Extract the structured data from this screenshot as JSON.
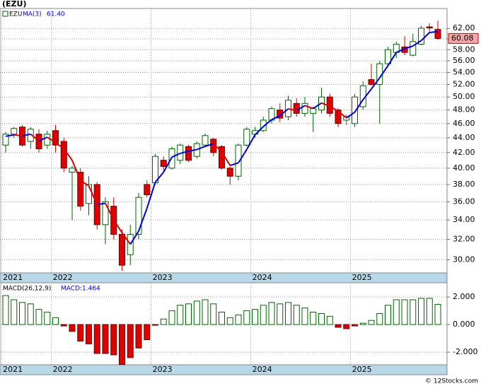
{
  "chart_data": [
    {
      "type": "candlestick",
      "title": "(EZU)",
      "name": "EZU",
      "categories": [
        null,
        null,
        null,
        null,
        null,
        null,
        null,
        null,
        null,
        null,
        null,
        null,
        null,
        null,
        null,
        null,
        null,
        null,
        null,
        null,
        null,
        null,
        null,
        null,
        null,
        null,
        null,
        null,
        null,
        null,
        null,
        null,
        null,
        null,
        null,
        null,
        null,
        null,
        null,
        null,
        null,
        null,
        null,
        null,
        null,
        null,
        null,
        null,
        null,
        null,
        null,
        null,
        null
      ],
      "open": [
        43.0,
        44.5,
        45.5,
        43.5,
        44.5,
        43.0,
        45.0,
        43.5,
        39.5,
        39.5,
        35.8,
        38.0,
        33.5,
        35.5,
        32.5,
        30.5,
        32.5,
        38.0,
        38.2,
        41.0,
        40.0,
        41.0,
        42.8,
        41.5,
        43.0,
        43.8,
        42.8,
        40.0,
        39.0,
        43.0,
        44.5,
        45.0,
        46.5,
        48.0,
        47.0,
        49.0,
        47.5,
        47.5,
        48.0,
        50.0,
        48.0,
        46.5,
        46.0,
        48.5,
        52.8,
        52.0,
        55.5,
        57.5,
        58.5,
        57.0,
        59.0,
        62.3,
        61.8
      ],
      "high": [
        44.8,
        45.5,
        45.8,
        45.5,
        45.2,
        45.0,
        45.8,
        44.0,
        40.3,
        40.0,
        39.0,
        38.3,
        36.5,
        36.5,
        33.0,
        33.5,
        37.0,
        38.5,
        41.8,
        41.5,
        42.8,
        43.2,
        43.0,
        43.5,
        44.6,
        44.0,
        43.0,
        40.2,
        43.2,
        45.5,
        45.5,
        47.0,
        48.5,
        49.0,
        50.2,
        49.8,
        50.0,
        48.5,
        51.5,
        50.5,
        48.3,
        47.3,
        50.5,
        52.5,
        55.5,
        56.0,
        58.5,
        59.5,
        60.5,
        61.0,
        62.5,
        63.0,
        63.5
      ],
      "low": [
        42.0,
        44.0,
        42.8,
        42.5,
        42.0,
        42.5,
        42.0,
        39.5,
        34.0,
        35.0,
        34.5,
        33.0,
        31.5,
        32.0,
        29.0,
        29.5,
        32.0,
        36.5,
        38.0,
        39.5,
        39.8,
        40.5,
        40.8,
        41.2,
        42.8,
        41.5,
        39.8,
        38.0,
        38.5,
        42.8,
        44.0,
        44.8,
        46.0,
        46.2,
        46.5,
        47.0,
        47.0,
        44.8,
        47.5,
        47.0,
        45.5,
        45.8,
        45.5,
        48.0,
        51.8,
        46.0,
        55.0,
        56.5,
        57.0,
        56.8,
        58.8,
        61.2,
        59.8
      ],
      "close": [
        44.5,
        45.3,
        43.0,
        45.2,
        42.5,
        44.5,
        43.0,
        40.0,
        40.0,
        35.5,
        38.0,
        33.5,
        36.0,
        32.5,
        29.5,
        32.5,
        36.5,
        36.8,
        41.5,
        40.2,
        42.5,
        43.0,
        41.0,
        43.2,
        44.3,
        42.0,
        40.0,
        39.0,
        43.0,
        45.2,
        45.0,
        46.5,
        48.2,
        46.8,
        49.5,
        47.5,
        49.0,
        48.2,
        50.0,
        47.5,
        46.0,
        47.0,
        50.0,
        51.8,
        52.0,
        55.5,
        58.0,
        59.0,
        57.5,
        59.5,
        62.04,
        62.1,
        60.08
      ],
      "up_color": "#006400",
      "down_color": "#e00000",
      "last_price_label": "60.08",
      "ma": {
        "name": "MA(3)",
        "value_label": "61.40",
        "up_color": "#0000dd",
        "down_color": "#dd0000",
        "values": [
          44.2,
          44.4,
          44.27,
          44.5,
          43.57,
          44.07,
          43.33,
          42.5,
          41.0,
          38.5,
          37.83,
          35.67,
          35.83,
          34.0,
          32.67,
          31.5,
          32.83,
          35.27,
          38.27,
          39.5,
          41.4,
          41.9,
          42.17,
          42.4,
          42.83,
          43.17,
          42.1,
          40.33,
          40.67,
          42.4,
          44.4,
          45.57,
          46.57,
          47.17,
          48.17,
          47.93,
          48.67,
          48.23,
          49.07,
          48.57,
          47.83,
          46.83,
          47.67,
          49.6,
          51.27,
          53.1,
          55.17,
          57.5,
          58.17,
          58.67,
          59.68,
          61.21,
          61.4
        ]
      },
      "ylim": [
        28.8,
        66
      ],
      "log_scale": true,
      "grid": true,
      "yticks": [
        {
          "value": 30,
          "label": "30.00"
        },
        {
          "value": 32,
          "label": "32.00"
        },
        {
          "value": 34,
          "label": "34.00"
        },
        {
          "value": 36,
          "label": "36.00"
        },
        {
          "value": 38,
          "label": "38.00"
        },
        {
          "value": 40,
          "label": "40.00"
        },
        {
          "value": 42,
          "label": "42.00"
        },
        {
          "value": 44,
          "label": "44.00"
        },
        {
          "value": 46,
          "label": "46.00"
        },
        {
          "value": 48,
          "label": "48.00"
        },
        {
          "value": 50,
          "label": "50.00"
        },
        {
          "value": 52,
          "label": "52.00"
        },
        {
          "value": 54,
          "label": "54.00"
        },
        {
          "value": 56,
          "label": "56.00"
        },
        {
          "value": 58,
          "label": "58.00"
        },
        {
          "value": 60,
          "label": "60.00"
        },
        {
          "value": 62,
          "label": "62.00"
        }
      ],
      "xticks": [
        {
          "value": -0.5,
          "label": "2021"
        },
        {
          "value": 5.5,
          "label": "2022"
        },
        {
          "value": 17.5,
          "label": "2023"
        },
        {
          "value": 29.5,
          "label": "2024"
        },
        {
          "value": 41.5,
          "label": "2025"
        }
      ]
    },
    {
      "type": "bar",
      "title": "MACD(26,12,9)",
      "value_label": "MACD:1.464",
      "pos_color": "#006400",
      "neg_color": "#e00000",
      "values": [
        2.1,
        1.8,
        1.6,
        1.5,
        1.1,
        0.9,
        0.5,
        -0.1,
        -0.5,
        -1.2,
        -1.4,
        -2.1,
        -2.1,
        -2.2,
        -2.9,
        -2.4,
        -1.7,
        -1.1,
        -0.05,
        0.4,
        1.0,
        1.4,
        1.5,
        1.7,
        1.8,
        1.5,
        0.9,
        0.5,
        0.7,
        1.0,
        1.1,
        1.4,
        1.6,
        1.5,
        1.6,
        1.4,
        1.2,
        0.9,
        0.8,
        0.6,
        -0.2,
        -0.3,
        -0.1,
        0.1,
        0.3,
        0.8,
        1.4,
        1.8,
        1.8,
        1.8,
        1.9,
        1.9,
        1.464
      ],
      "ylim": [
        -2.92,
        3.03
      ],
      "grid": true,
      "yticks": [
        {
          "value": -2,
          "label": "-2.000"
        },
        {
          "value": 0,
          "label": "0.000"
        },
        {
          "value": 2,
          "label": "2.000"
        }
      ],
      "xticks": [
        {
          "value": -0.5,
          "label": "2021"
        },
        {
          "value": 5.5,
          "label": "2022"
        },
        {
          "value": 17.5,
          "label": "2023"
        },
        {
          "value": 29.5,
          "label": "2024"
        },
        {
          "value": 41.5,
          "label": "2025"
        }
      ]
    }
  ],
  "footer": "© 12Stocks.com"
}
